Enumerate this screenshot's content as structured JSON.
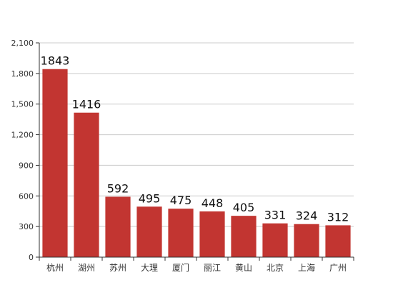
{
  "chart_data": {
    "type": "bar",
    "categories": [
      "杭州",
      "湖州",
      "苏州",
      "大理",
      "厦门",
      "丽江",
      "黄山",
      "北京",
      "上海",
      "广州"
    ],
    "values": [
      1843,
      1416,
      592,
      495,
      475,
      448,
      405,
      331,
      324,
      312
    ],
    "y_ticks": [
      "0",
      "300",
      "600",
      "900",
      "1,200",
      "1,500",
      "1,800",
      "2,100"
    ],
    "ylim": [
      0,
      2100
    ],
    "grid": true,
    "legend": "none",
    "bar_color": "#c23531",
    "grid_color": "#cccccc",
    "axis_color": "#333333"
  }
}
